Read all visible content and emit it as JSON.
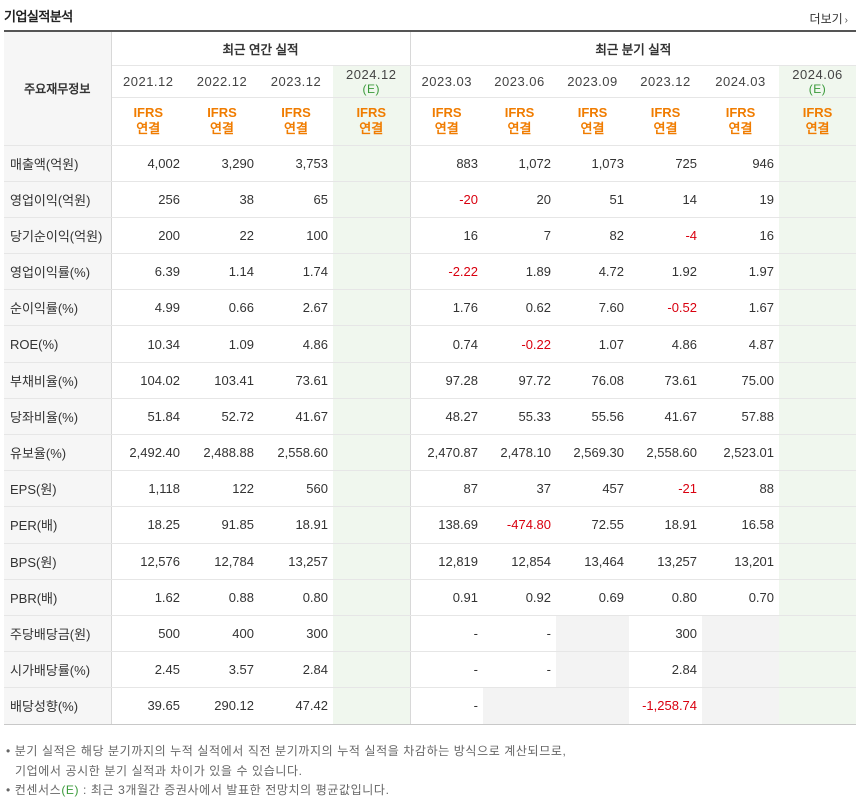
{
  "header": {
    "title": "기업실적분석",
    "more_label": "더보기",
    "more_arrow": "›"
  },
  "table": {
    "row_header_label": "주요재무정보",
    "groups": {
      "annual": "최근 연간 실적",
      "quarterly": "최근 분기 실적"
    },
    "periods": [
      {
        "main": "2021.12",
        "est": ""
      },
      {
        "main": "2022.12",
        "est": ""
      },
      {
        "main": "2023.12",
        "est": ""
      },
      {
        "main": "2024.12",
        "est": "(E)"
      },
      {
        "main": "2023.03",
        "est": ""
      },
      {
        "main": "2023.06",
        "est": ""
      },
      {
        "main": "2023.09",
        "est": ""
      },
      {
        "main": "2023.12",
        "est": ""
      },
      {
        "main": "2024.03",
        "est": ""
      },
      {
        "main": "2024.06",
        "est": "(E)"
      }
    ],
    "ifrs": {
      "line1": "IFRS",
      "line2": "연결"
    },
    "rows": [
      {
        "label": "매출액(억원)",
        "values": [
          "4,002",
          "3,290",
          "3,753",
          "",
          "883",
          "1,072",
          "1,073",
          "725",
          "946",
          ""
        ]
      },
      {
        "label": "영업이익(억원)",
        "values": [
          "256",
          "38",
          "65",
          "",
          "-20",
          "20",
          "51",
          "14",
          "19",
          ""
        ]
      },
      {
        "label": "당기순이익(억원)",
        "values": [
          "200",
          "22",
          "100",
          "",
          "16",
          "7",
          "82",
          "-4",
          "16",
          ""
        ]
      },
      {
        "label": "영업이익률(%)",
        "values": [
          "6.39",
          "1.14",
          "1.74",
          "",
          "-2.22",
          "1.89",
          "4.72",
          "1.92",
          "1.97",
          ""
        ]
      },
      {
        "label": "순이익률(%)",
        "values": [
          "4.99",
          "0.66",
          "2.67",
          "",
          "1.76",
          "0.62",
          "7.60",
          "-0.52",
          "1.67",
          ""
        ]
      },
      {
        "label": "ROE(%)",
        "values": [
          "10.34",
          "1.09",
          "4.86",
          "",
          "0.74",
          "-0.22",
          "1.07",
          "4.86",
          "4.87",
          ""
        ]
      },
      {
        "label": "부채비율(%)",
        "values": [
          "104.02",
          "103.41",
          "73.61",
          "",
          "97.28",
          "97.72",
          "76.08",
          "73.61",
          "75.00",
          ""
        ]
      },
      {
        "label": "당좌비율(%)",
        "values": [
          "51.84",
          "52.72",
          "41.67",
          "",
          "48.27",
          "55.33",
          "55.56",
          "41.67",
          "57.88",
          ""
        ]
      },
      {
        "label": "유보율(%)",
        "values": [
          "2,492.40",
          "2,488.88",
          "2,558.60",
          "",
          "2,470.87",
          "2,478.10",
          "2,569.30",
          "2,558.60",
          "2,523.01",
          ""
        ]
      },
      {
        "label": "EPS(원)",
        "values": [
          "1,118",
          "122",
          "560",
          "",
          "87",
          "37",
          "457",
          "-21",
          "88",
          ""
        ]
      },
      {
        "label": "PER(배)",
        "values": [
          "18.25",
          "91.85",
          "18.91",
          "",
          "138.69",
          "-474.80",
          "72.55",
          "18.91",
          "16.58",
          ""
        ]
      },
      {
        "label": "BPS(원)",
        "values": [
          "12,576",
          "12,784",
          "13,257",
          "",
          "12,819",
          "12,854",
          "13,464",
          "13,257",
          "13,201",
          ""
        ]
      },
      {
        "label": "PBR(배)",
        "values": [
          "1.62",
          "0.88",
          "0.80",
          "",
          "0.91",
          "0.92",
          "0.69",
          "0.80",
          "0.70",
          ""
        ]
      },
      {
        "label": "주당배당금(원)",
        "values": [
          "500",
          "400",
          "300",
          "",
          "-",
          "-",
          "",
          "300",
          "",
          ""
        ]
      },
      {
        "label": "시가배당률(%)",
        "values": [
          "2.45",
          "3.57",
          "2.84",
          "",
          "-",
          "-",
          "",
          "2.84",
          "",
          ""
        ]
      },
      {
        "label": "배당성향(%)",
        "values": [
          "39.65",
          "290.12",
          "47.42",
          "",
          "-",
          "",
          "",
          "-1,258.74",
          "",
          ""
        ]
      }
    ],
    "gray_cells": [
      [
        13,
        6
      ],
      [
        13,
        8
      ],
      [
        14,
        6
      ],
      [
        14,
        8
      ],
      [
        15,
        5
      ],
      [
        15,
        6
      ],
      [
        15,
        8
      ]
    ],
    "group_start_rows": [
      3,
      6,
      9,
      13
    ]
  },
  "notes": {
    "line1": "분기 실적은 해당 분기까지의 누적 실적에서 직전 분기까지의 누적 실적을 차감하는 방식으로 계산되므로,",
    "line2": "기업에서 공시한 분기 실적과 차이가 있을 수 있습니다.",
    "line3_prefix": "컨센서스",
    "line3_e": "(E)",
    "line3_suffix": " : 최근 3개월간 증권사에서 발표한 전망치의 평균값입니다.",
    "bullet": "•"
  },
  "colors": {
    "negative": "#d9000f",
    "ifrs": "#f07c00",
    "estimate_text": "#3a9a3a",
    "estimate_bg": "#f0f7ee"
  }
}
